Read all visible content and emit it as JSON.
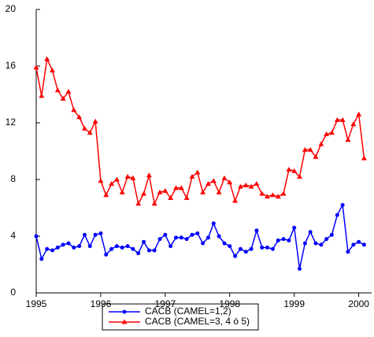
{
  "chart_data": {
    "type": "line",
    "x": [
      1995,
      1995.083,
      1995.167,
      1995.25,
      1995.333,
      1995.417,
      1995.5,
      1995.583,
      1995.667,
      1995.75,
      1995.833,
      1995.917,
      1996,
      1996.083,
      1996.167,
      1996.25,
      1996.333,
      1996.417,
      1996.5,
      1996.583,
      1996.667,
      1996.75,
      1996.833,
      1996.917,
      1997,
      1997.083,
      1997.167,
      1997.25,
      1997.333,
      1997.417,
      1997.5,
      1997.583,
      1997.667,
      1997.75,
      1997.833,
      1997.917,
      1998,
      1998.083,
      1998.167,
      1998.25,
      1998.333,
      1998.417,
      1998.5,
      1998.583,
      1998.667,
      1998.75,
      1998.833,
      1998.917,
      1999,
      1999.083,
      1999.167,
      1999.25,
      1999.333,
      1999.417,
      1999.5,
      1999.583,
      1999.667,
      1999.75,
      1999.833,
      1999.917,
      2000,
      2000.083
    ],
    "series": [
      {
        "name": "CACB (CAMEL=1,2)",
        "color": "#0000ff",
        "marker": "circle",
        "values": [
          4.0,
          2.4,
          3.1,
          3.0,
          3.2,
          3.4,
          3.5,
          3.2,
          3.3,
          4.1,
          3.3,
          4.1,
          4.2,
          2.7,
          3.1,
          3.3,
          3.2,
          3.3,
          3.1,
          2.8,
          3.6,
          3.0,
          3.0,
          3.8,
          4.1,
          3.3,
          3.9,
          3.9,
          3.8,
          4.1,
          4.2,
          3.5,
          3.9,
          4.9,
          4.0,
          3.5,
          3.3,
          2.6,
          3.1,
          2.9,
          3.1,
          4.4,
          3.2,
          3.2,
          3.1,
          3.7,
          3.8,
          3.7,
          4.6,
          1.7,
          3.5,
          4.3,
          3.5,
          3.4,
          3.8,
          4.1,
          5.5,
          6.2,
          2.9,
          3.4,
          3.6,
          3.4
        ]
      },
      {
        "name": "CACB (CAMEL=3, 4 ó 5)",
        "color": "#ff0000",
        "marker": "triangle",
        "values": [
          15.9,
          13.9,
          16.5,
          15.7,
          14.3,
          13.7,
          14.2,
          12.9,
          12.4,
          11.6,
          11.3,
          12.1,
          7.9,
          6.9,
          7.7,
          8.0,
          7.1,
          8.2,
          8.1,
          6.3,
          7.0,
          8.3,
          6.3,
          7.1,
          7.2,
          6.7,
          7.4,
          7.4,
          6.7,
          8.2,
          8.5,
          7.1,
          7.7,
          7.9,
          7.1,
          8.1,
          7.8,
          6.5,
          7.5,
          7.6,
          7.5,
          7.7,
          7.0,
          6.8,
          6.9,
          6.8,
          7.0,
          8.7,
          8.6,
          8.2,
          10.1,
          10.1,
          9.6,
          10.5,
          11.2,
          11.3,
          12.2,
          12.2,
          10.8,
          11.9,
          12.6,
          9.5
        ]
      }
    ],
    "xlim": [
      1995,
      2000.2
    ],
    "xticks": [
      1995,
      1996,
      1997,
      1998,
      1999,
      2000
    ],
    "ylim": [
      0,
      20
    ],
    "yticks": [
      0,
      4,
      8,
      12,
      16,
      20
    ]
  }
}
